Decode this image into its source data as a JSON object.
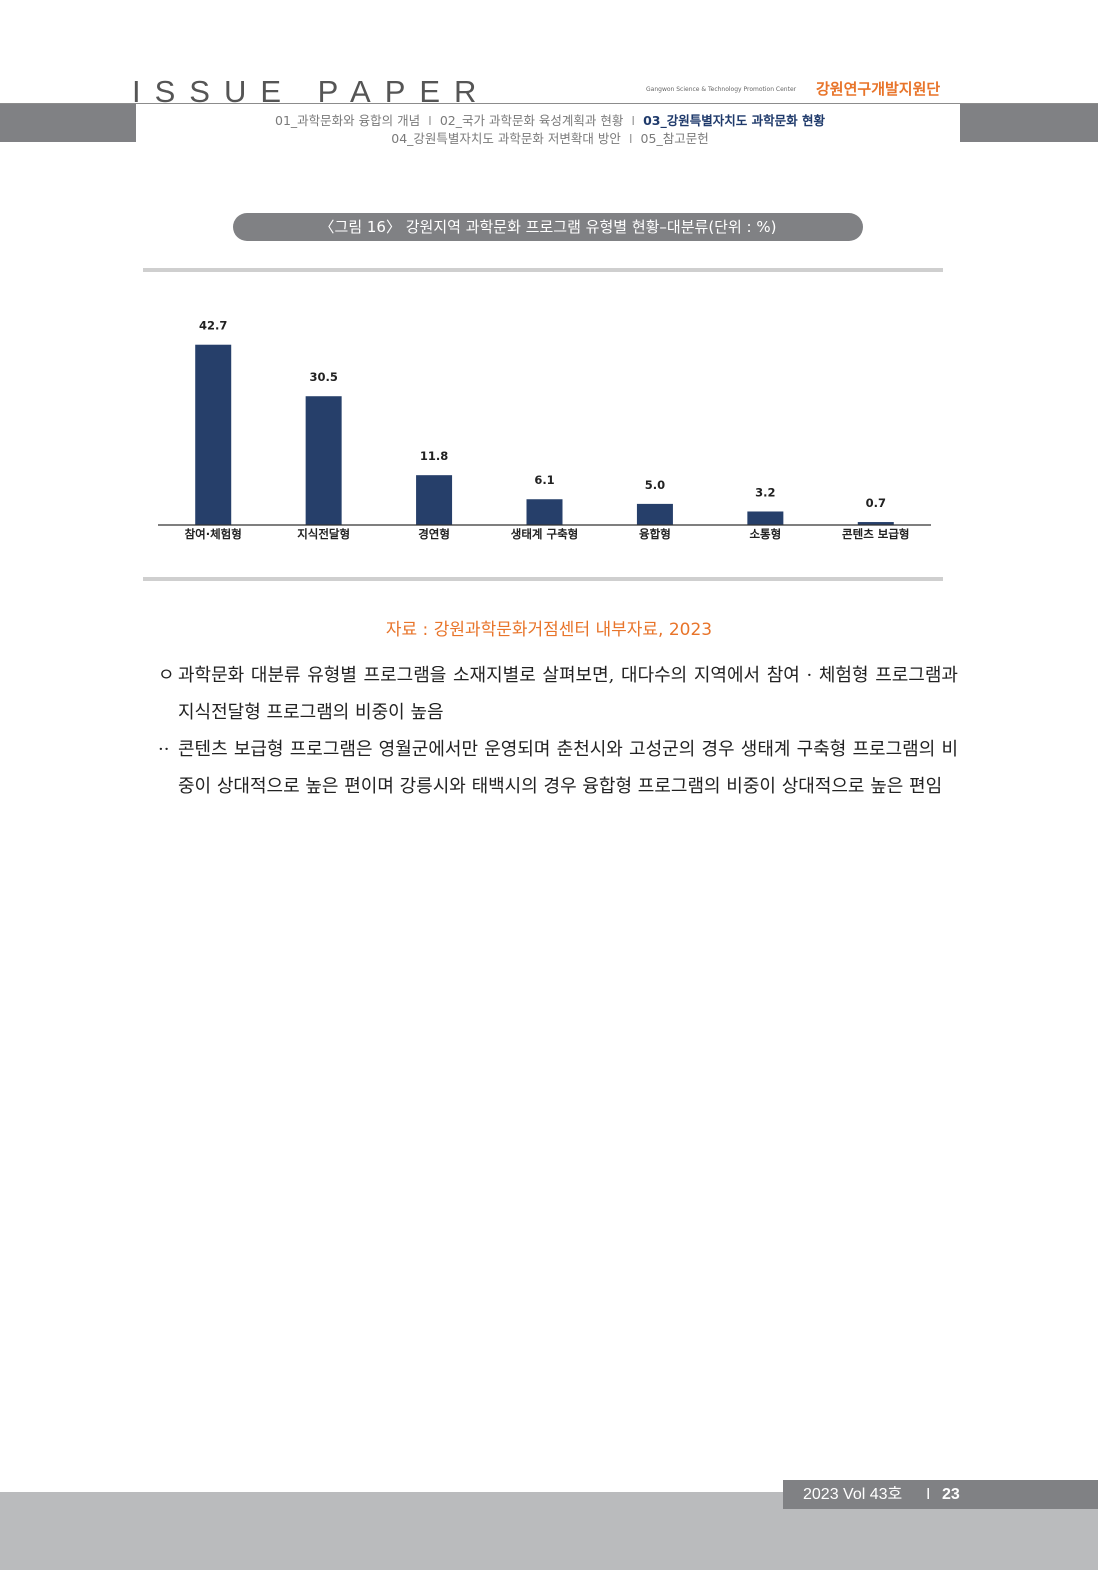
{
  "header": {
    "brand": "ISSUE PAPER",
    "org_en": "Gangwon Science & Technology Promotion Center",
    "org_ko": "강원연구개발지원단",
    "nav_line1": [
      {
        "label": "01_과학문화와 융합의 개념",
        "active": false
      },
      {
        "label": "02_국가 과학문화 육성계획과 현황",
        "active": false
      },
      {
        "label": "03_강원특별자치도 과학문화 현황",
        "active": true
      }
    ],
    "nav_line2": [
      {
        "label": "04_강원특별자치도 과학문화 저변확대 방안",
        "active": false
      },
      {
        "label": "05_참고문헌",
        "active": false
      }
    ],
    "separator": "I"
  },
  "figure": {
    "caption": "〈그림 16〉 강원지역 과학문화 프로그램 유형별 현황–대분류(단위 : %)"
  },
  "chart_data": {
    "type": "bar",
    "title": "",
    "xlabel": "",
    "ylabel": "",
    "categories": [
      "참여·체험형",
      "지식전달형",
      "경연형",
      "생태계 구축형",
      "융합형",
      "소통형",
      "콘텐츠 보급형"
    ],
    "values": [
      42.7,
      30.5,
      11.8,
      6.1,
      5.0,
      3.2,
      0.7
    ],
    "value_labels": [
      "42.7",
      "30.5",
      "11.8",
      "6.1",
      "5.0",
      "3.2",
      "0.7"
    ],
    "ylim": [
      0,
      45
    ],
    "grid": false,
    "bar_color": "#263f6a"
  },
  "source": "자료 : 강원과학문화거점센터 내부자료, 2023",
  "body": {
    "paragraphs": [
      {
        "bullet": "ㅇ",
        "text": "과학문화 대분류 유형별 프로그램을 소재지별로 살펴보면, 대다수의 지역에서 참여 · 체험형 프로그램과 지식전달형 프로그램의 비중이 높음"
      },
      {
        "bullet": "··",
        "text": "콘텐츠 보급형 프로그램은 영월군에서만 운영되며 춘천시와 고성군의 경우 생태계 구축형 프로그램의 비중이 상대적으로 높은 편이며 강릉시와 태백시의 경우 융합형 프로그램의 비중이 상대적으로 높은 편임"
      }
    ]
  },
  "footer": {
    "volume": "2023 Vol 43호",
    "separator": "I",
    "page": "23"
  },
  "colors": {
    "accent": "#e8742a",
    "header_gray": "#808184",
    "footer_gray": "#babbbd",
    "nav_active": "#1f3a6b"
  }
}
